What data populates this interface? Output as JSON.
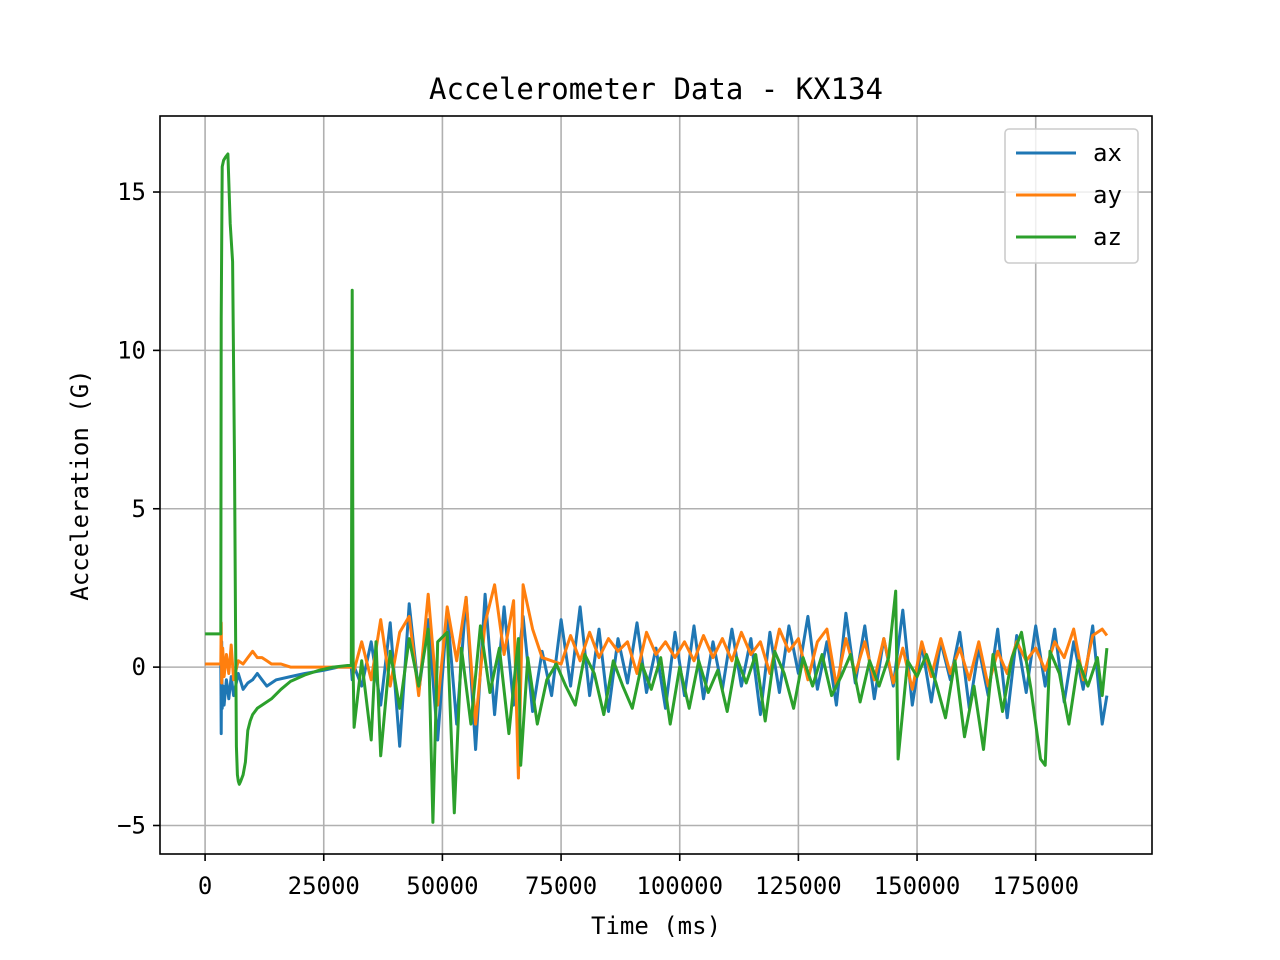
{
  "chart_data": {
    "type": "line",
    "title": "Accelerometer Data - KX134",
    "xlabel": "Time (ms)",
    "ylabel": "Acceleration (G)",
    "xlim": [
      -9500,
      199500
    ],
    "ylim": [
      -5.9,
      17.4
    ],
    "x_ticks": [
      0,
      25000,
      50000,
      75000,
      100000,
      125000,
      150000,
      175000
    ],
    "x_tick_labels": [
      "0",
      "25000",
      "50000",
      "75000",
      "100000",
      "125000",
      "150000",
      "175000"
    ],
    "y_ticks": [
      -5,
      0,
      5,
      10,
      15
    ],
    "y_tick_labels": [
      "−5",
      "0",
      "5",
      "10",
      "15"
    ],
    "grid": true,
    "legend_position": "top-right",
    "series": [
      {
        "name": "ax",
        "color": "#1f77b4",
        "x": [
          0,
          3300,
          3400,
          3500,
          3600,
          3800,
          4000,
          4500,
          5000,
          5500,
          6000,
          7000,
          8000,
          9000,
          10000,
          11000,
          12000,
          13000,
          15000,
          18000,
          21000,
          25000,
          28000,
          30800,
          31000,
          31200,
          33000,
          35000,
          37000,
          39000,
          41000,
          43000,
          45000,
          47000,
          49000,
          51000,
          53000,
          55000,
          57000,
          59000,
          61000,
          63000,
          65000,
          67000,
          69000,
          71000,
          73000,
          75000,
          77000,
          79000,
          81000,
          83000,
          85000,
          87000,
          89000,
          91000,
          93000,
          95000,
          97000,
          99000,
          101000,
          103000,
          105000,
          107000,
          109000,
          111000,
          113000,
          115000,
          117000,
          119000,
          121000,
          123000,
          125000,
          127000,
          129000,
          131000,
          133000,
          135000,
          137000,
          139000,
          141000,
          143000,
          145000,
          147000,
          149000,
          151000,
          153000,
          155000,
          157000,
          159000,
          161000,
          163000,
          165000,
          167000,
          169000,
          171000,
          173000,
          175000,
          177000,
          179000,
          181000,
          183000,
          185000,
          187000,
          189000,
          190000
        ],
        "y": [
          0.1,
          0.1,
          -2.1,
          0.8,
          -1.3,
          -0.6,
          -1.2,
          -0.4,
          -1.0,
          -0.3,
          -0.9,
          -0.2,
          -0.7,
          -0.5,
          -0.4,
          -0.2,
          -0.4,
          -0.6,
          -0.4,
          -0.3,
          -0.2,
          -0.1,
          0.0,
          0.0,
          -0.4,
          0.1,
          -0.6,
          0.8,
          -1.2,
          1.4,
          -2.5,
          2.0,
          -0.8,
          1.5,
          -2.3,
          1.8,
          -1.8,
          2.2,
          -2.6,
          2.3,
          -1.5,
          1.9,
          -1.2,
          1.6,
          -1.4,
          0.5,
          -0.9,
          1.5,
          -0.6,
          1.9,
          -0.9,
          1.2,
          -1.4,
          0.9,
          -0.5,
          1.4,
          -0.8,
          0.6,
          -1.3,
          1.1,
          -0.9,
          1.3,
          -1.0,
          0.8,
          -0.7,
          1.2,
          -0.6,
          0.9,
          -1.5,
          1.1,
          -0.8,
          1.3,
          -0.2,
          1.6,
          -0.7,
          0.8,
          -1.2,
          1.7,
          -0.5,
          1.3,
          -1.0,
          0.9,
          -0.6,
          1.8,
          -1.2,
          0.7,
          -1.1,
          0.8,
          -0.4,
          1.1,
          -1.3,
          0.6,
          -0.9,
          1.2,
          -1.6,
          1.0,
          -0.8,
          1.3,
          -0.6,
          1.2,
          -1.1,
          0.8,
          -0.7,
          1.3,
          -1.8,
          -0.9
        ]
      },
      {
        "name": "ay",
        "color": "#ff7f0e",
        "x": [
          0,
          3300,
          3400,
          3500,
          3700,
          4000,
          4500,
          5000,
          5500,
          6000,
          7000,
          8000,
          9000,
          10000,
          11000,
          12000,
          13000,
          14000,
          16000,
          18000,
          21000,
          25000,
          28000,
          30800,
          31000,
          31200,
          33000,
          35000,
          37000,
          39000,
          41000,
          43000,
          45000,
          47000,
          49000,
          51000,
          53000,
          55000,
          57000,
          59000,
          61000,
          63000,
          65000,
          66000,
          67000,
          69000,
          71000,
          73000,
          75000,
          77000,
          79000,
          81000,
          83000,
          85000,
          87000,
          89000,
          91000,
          93000,
          95000,
          97000,
          99000,
          101000,
          103000,
          105000,
          107000,
          109000,
          111000,
          113000,
          115000,
          117000,
          119000,
          121000,
          123000,
          125000,
          127000,
          129000,
          131000,
          133000,
          135000,
          137000,
          139000,
          141000,
          143000,
          145000,
          147000,
          149000,
          151000,
          153000,
          155000,
          157000,
          159000,
          161000,
          163000,
          165000,
          167000,
          169000,
          171000,
          173000,
          175000,
          177000,
          179000,
          181000,
          183000,
          185000,
          187000,
          189000,
          190000
        ],
        "y": [
          0.1,
          0.1,
          1.4,
          -0.5,
          0.6,
          -0.3,
          0.4,
          -0.2,
          0.7,
          -0.4,
          0.2,
          0.1,
          0.3,
          0.5,
          0.3,
          0.3,
          0.2,
          0.1,
          0.1,
          0.0,
          0.0,
          0.0,
          0.0,
          0.0,
          0.3,
          -0.2,
          0.8,
          -0.4,
          1.5,
          -0.6,
          1.1,
          1.6,
          -0.9,
          2.3,
          -1.2,
          1.9,
          0.2,
          2.2,
          -1.8,
          1.4,
          2.6,
          0.4,
          2.1,
          -3.5,
          2.6,
          1.2,
          0.3,
          0.2,
          0.1,
          1.0,
          0.2,
          1.1,
          0.3,
          0.9,
          0.5,
          0.8,
          -0.2,
          1.1,
          0.4,
          0.8,
          0.3,
          0.8,
          0.2,
          1.0,
          0.3,
          0.9,
          0.2,
          1.1,
          0.4,
          0.8,
          -0.2,
          1.2,
          0.5,
          0.9,
          -0.4,
          0.8,
          1.2,
          -0.6,
          0.9,
          -0.2,
          0.8,
          -0.4,
          0.9,
          -0.5,
          0.6,
          -0.7,
          0.8,
          -0.3,
          0.9,
          -0.2,
          0.6,
          -0.4,
          0.8,
          -0.6,
          0.5,
          -0.2,
          0.8,
          0.2,
          0.6,
          -0.1,
          0.8,
          0.3,
          1.2,
          -0.4,
          1.0,
          1.2,
          1.0
        ]
      },
      {
        "name": "az",
        "color": "#2ca02c",
        "x": [
          0,
          3300,
          3400,
          3600,
          3900,
          4300,
          4800,
          5300,
          5800,
          6200,
          6400,
          6600,
          6800,
          7000,
          7200,
          7500,
          8000,
          8500,
          9000,
          9500,
          10000,
          11000,
          12000,
          14000,
          16000,
          18000,
          21000,
          24000,
          27000,
          30000,
          30800,
          31000,
          31200,
          31400,
          33000,
          35000,
          36000,
          37000,
          39000,
          41000,
          43000,
          45000,
          47000,
          48000,
          49000,
          51000,
          52500,
          54000,
          56000,
          58000,
          60000,
          62000,
          64000,
          66000,
          66500,
          68000,
          70000,
          72000,
          74000,
          76000,
          78000,
          80000,
          82000,
          84000,
          86000,
          88000,
          90000,
          92000,
          94000,
          96000,
          98000,
          100000,
          102000,
          104000,
          106000,
          108000,
          110000,
          112000,
          114000,
          116000,
          118000,
          120000,
          122000,
          124000,
          126000,
          128000,
          130000,
          132000,
          134000,
          136000,
          138000,
          140000,
          142000,
          144000,
          145500,
          146000,
          148000,
          150000,
          152000,
          154000,
          156000,
          158000,
          160000,
          162000,
          164000,
          166000,
          168000,
          170000,
          172000,
          174000,
          176000,
          177000,
          178000,
          180000,
          182000,
          184000,
          186000,
          188000,
          189000,
          190000
        ],
        "y": [
          1.05,
          1.05,
          11.0,
          15.8,
          16.0,
          16.1,
          16.2,
          14.0,
          12.8,
          6.5,
          1.5,
          -2.5,
          -3.4,
          -3.6,
          -3.7,
          -3.6,
          -3.4,
          -3.0,
          -2.0,
          -1.7,
          -1.5,
          -1.3,
          -1.2,
          -1.0,
          -0.7,
          -0.45,
          -0.25,
          -0.1,
          0.0,
          0.05,
          0.05,
          11.9,
          -0.2,
          -1.9,
          0.2,
          -2.3,
          0.8,
          -2.8,
          0.5,
          -1.3,
          0.9,
          -0.6,
          1.2,
          -4.9,
          0.8,
          1.1,
          -4.6,
          0.6,
          -1.8,
          1.3,
          -0.8,
          0.6,
          -2.1,
          0.9,
          -3.1,
          0.3,
          -1.8,
          -0.4,
          0.1,
          -0.6,
          -1.2,
          0.4,
          -0.2,
          -1.5,
          0.2,
          -0.6,
          -1.3,
          0.1,
          -0.7,
          0.3,
          -1.8,
          0.0,
          -1.3,
          0.2,
          -0.8,
          -0.1,
          -1.4,
          0.3,
          -0.5,
          0.4,
          -1.7,
          0.5,
          -0.2,
          -1.3,
          0.3,
          -0.6,
          0.4,
          -0.9,
          -0.3,
          0.4,
          -1.1,
          0.2,
          -0.6,
          0.3,
          2.4,
          -2.9,
          0.2,
          -0.3,
          0.4,
          -0.5,
          -1.6,
          0.2,
          -2.2,
          -0.6,
          -2.6,
          0.4,
          -1.4,
          0.3,
          1.1,
          -0.7,
          -2.9,
          -3.1,
          0.5,
          -0.2,
          -1.8,
          0.2,
          -0.6,
          0.3,
          -0.9,
          0.6
        ]
      }
    ]
  }
}
